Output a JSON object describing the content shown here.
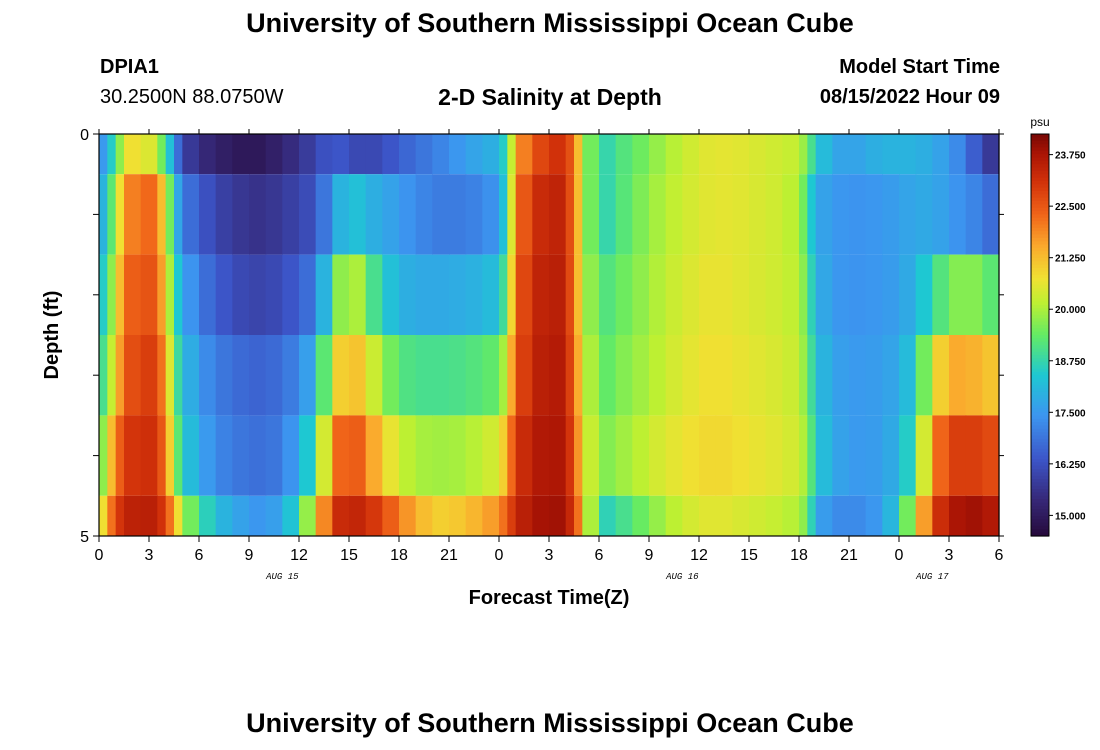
{
  "header": {
    "title": "University of Southern Mississippi Ocean Cube",
    "station": "DPIA1",
    "coords": "30.2500N  88.0750W",
    "subtitle": "2-D Salinity at Depth",
    "model_start_label": "Model Start Time",
    "model_start_value": "08/15/2022 Hour 09"
  },
  "footer": {
    "title": "University of Southern Mississippi Ocean Cube"
  },
  "chart_data": {
    "type": "heatmap",
    "title": "2-D Salinity at Depth",
    "xlabel": "Forecast Time(Z)",
    "ylabel": "Depth (ft)",
    "x_ticks": [
      "0",
      "3",
      "6",
      "9",
      "12",
      "15",
      "18",
      "21",
      "0",
      "3",
      "6",
      "9",
      "12",
      "15",
      "18",
      "21",
      "0",
      "3",
      "6"
    ],
    "date_labels": [
      {
        "at_index": 11,
        "text": "AUG 15"
      },
      {
        "at_index": 35,
        "text": "AUG 16"
      },
      {
        "at_index": 50,
        "text": "AUG 17"
      }
    ],
    "y_tick_labels": [
      {
        "depth": 0,
        "text": "0"
      },
      {
        "depth": 5,
        "text": "5"
      }
    ],
    "ylim": [
      0,
      5
    ],
    "xlim_hours": [
      0,
      54
    ],
    "colorbar": {
      "unit": "psu",
      "range": [
        14.5,
        24.25
      ],
      "ticks": [
        "23.750",
        "22.500",
        "21.250",
        "20.000",
        "18.750",
        "17.500",
        "16.250",
        "15.000"
      ],
      "tick_values": [
        23.75,
        22.5,
        21.25,
        20.0,
        18.75,
        17.5,
        16.25,
        15.0
      ]
    },
    "depth_layers": [
      "0.0-0.5 ft",
      "0.5-1.5 ft",
      "1.5-2.5 ft",
      "2.5-3.5 ft",
      "3.5-4.5 ft",
      "4.5-5.0 ft"
    ],
    "profiles": [
      {
        "depth": "0.0-0.5 ft",
        "hours": [
          0,
          0.5,
          1,
          1.5,
          2.5,
          3.5,
          4,
          4.5,
          5,
          6,
          7,
          8,
          9,
          10,
          11,
          12,
          13,
          14,
          15,
          16,
          17,
          18,
          19,
          20,
          21,
          22,
          23,
          24,
          24.5,
          25,
          26,
          27,
          28,
          28.5,
          29,
          30,
          31,
          32,
          33,
          34,
          35,
          36,
          37,
          38,
          39,
          40,
          41,
          42,
          42.5,
          43,
          44,
          45,
          46,
          47,
          48,
          49,
          50,
          51,
          52,
          53,
          54
        ],
        "values": [
          17.0,
          18.0,
          19.0,
          20.5,
          21.0,
          20.0,
          19.0,
          17.5,
          16.0,
          15.5,
          15.2,
          15.0,
          14.9,
          15.0,
          15.3,
          15.6,
          16.0,
          16.5,
          16.2,
          16.0,
          16.2,
          16.5,
          16.8,
          17.0,
          17.3,
          17.6,
          17.8,
          18.0,
          19.0,
          21.5,
          22.5,
          23.0,
          23.2,
          22.0,
          20.5,
          18.5,
          19.0,
          19.3,
          19.6,
          20.0,
          20.2,
          20.5,
          20.6,
          20.6,
          20.5,
          20.4,
          20.3,
          20.2,
          19.5,
          18.5,
          17.8,
          17.6,
          17.8,
          18.0,
          18.0,
          18.0,
          17.8,
          17.5,
          17.0,
          16.0,
          15.5
        ]
      },
      {
        "depth": "0.5-1.5 ft",
        "hours": [
          0,
          0.5,
          1,
          1.5,
          2.5,
          3.5,
          4,
          4.5,
          5,
          6,
          7,
          8,
          9,
          10,
          11,
          12,
          13,
          14,
          15,
          16,
          17,
          18,
          19,
          20,
          21,
          22,
          23,
          24,
          24.5,
          25,
          26,
          27,
          28,
          28.5,
          29,
          30,
          31,
          32,
          33,
          34,
          35,
          36,
          37,
          38,
          39,
          40,
          41,
          42,
          42.5,
          43,
          44,
          45,
          46,
          47,
          48,
          49,
          50,
          51,
          52,
          53,
          54
        ],
        "values": [
          17.5,
          18.5,
          20.0,
          21.5,
          22.5,
          22.0,
          20.5,
          18.5,
          17.0,
          16.5,
          16.0,
          15.8,
          15.6,
          15.6,
          15.8,
          16.0,
          16.3,
          17.5,
          18.5,
          18.0,
          17.8,
          17.5,
          17.3,
          17.0,
          17.0,
          17.0,
          17.2,
          17.5,
          19.0,
          22.0,
          23.0,
          23.5,
          23.3,
          22.0,
          20.5,
          18.5,
          19.0,
          19.4,
          19.8,
          20.1,
          20.3,
          20.5,
          20.6,
          20.6,
          20.5,
          20.4,
          20.3,
          20.0,
          19.0,
          17.8,
          17.5,
          17.4,
          17.4,
          17.5,
          17.6,
          17.8,
          17.8,
          17.5,
          17.3,
          17.0,
          16.5
        ]
      },
      {
        "depth": "1.5-2.5 ft",
        "hours": [
          0,
          0.5,
          1,
          1.5,
          2.5,
          3.5,
          4,
          4.5,
          5,
          6,
          7,
          8,
          9,
          10,
          11,
          12,
          13,
          14,
          15,
          16,
          17,
          18,
          19,
          20,
          21,
          22,
          23,
          24,
          24.5,
          25,
          26,
          27,
          28,
          28.5,
          29,
          30,
          31,
          32,
          33,
          34,
          35,
          36,
          37,
          38,
          39,
          40,
          41,
          42,
          42.5,
          43,
          44,
          45,
          46,
          47,
          48,
          49,
          50,
          51,
          52,
          53,
          54
        ],
        "values": [
          18.0,
          19.0,
          20.5,
          22.0,
          22.8,
          22.3,
          21.0,
          19.0,
          17.8,
          17.0,
          16.5,
          16.2,
          16.0,
          16.0,
          16.2,
          16.5,
          17.0,
          19.0,
          20.5,
          19.5,
          18.5,
          18.0,
          17.8,
          17.8,
          17.8,
          17.9,
          18.0,
          18.3,
          19.5,
          22.3,
          23.2,
          23.6,
          23.4,
          22.0,
          20.5,
          19.0,
          19.3,
          19.6,
          19.9,
          20.2,
          20.4,
          20.6,
          20.7,
          20.6,
          20.5,
          20.4,
          20.3,
          20.1,
          19.3,
          18.0,
          17.5,
          17.4,
          17.4,
          17.5,
          17.6,
          18.0,
          18.8,
          19.5,
          19.8,
          19.5,
          19.0
        ]
      },
      {
        "depth": "2.5-3.5 ft",
        "hours": [
          0,
          0.5,
          1,
          1.5,
          2.5,
          3.5,
          4,
          4.5,
          5,
          6,
          7,
          8,
          9,
          10,
          11,
          12,
          13,
          14,
          15,
          16,
          17,
          18,
          19,
          20,
          21,
          22,
          23,
          24,
          24.5,
          25,
          26,
          27,
          28,
          28.5,
          29,
          30,
          31,
          32,
          33,
          34,
          35,
          36,
          37,
          38,
          39,
          40,
          41,
          42,
          42.5,
          43,
          44,
          45,
          46,
          47,
          48,
          49,
          50,
          51,
          52,
          53,
          54
        ],
        "values": [
          18.5,
          19.5,
          21.0,
          22.3,
          23.0,
          22.8,
          21.5,
          19.5,
          18.2,
          17.5,
          17.0,
          16.8,
          16.6,
          16.6,
          16.8,
          17.2,
          18.0,
          20.5,
          21.5,
          20.8,
          19.8,
          19.2,
          19.0,
          19.0,
          19.0,
          19.1,
          19.2,
          19.4,
          20.5,
          22.5,
          23.3,
          23.7,
          23.5,
          22.2,
          20.8,
          19.2,
          19.5,
          19.8,
          20.0,
          20.3,
          20.5,
          20.7,
          20.8,
          20.7,
          20.6,
          20.5,
          20.4,
          20.2,
          19.5,
          18.3,
          17.7,
          17.5,
          17.5,
          17.6,
          17.8,
          18.5,
          20.5,
          21.5,
          21.5,
          21.3,
          21.0
        ]
      },
      {
        "depth": "3.5-4.5 ft",
        "hours": [
          0,
          0.5,
          1,
          1.5,
          2.5,
          3.5,
          4,
          4.5,
          5,
          6,
          7,
          8,
          9,
          10,
          11,
          12,
          13,
          14,
          15,
          16,
          17,
          18,
          19,
          20,
          21,
          22,
          23,
          24,
          24.5,
          25,
          26,
          27,
          28,
          28.5,
          29,
          30,
          31,
          32,
          33,
          34,
          35,
          36,
          37,
          38,
          39,
          40,
          41,
          42,
          42.5,
          43,
          44,
          45,
          46,
          47,
          48,
          49,
          50,
          51,
          52,
          53,
          54
        ],
        "values": [
          19.0,
          20.5,
          22.0,
          22.8,
          23.3,
          23.0,
          22.0,
          20.0,
          18.5,
          17.8,
          17.2,
          17.0,
          16.8,
          16.8,
          17.0,
          17.8,
          19.0,
          21.8,
          22.8,
          22.0,
          21.0,
          20.3,
          20.0,
          19.9,
          19.9,
          20.0,
          20.2,
          20.5,
          21.5,
          23.0,
          23.5,
          23.8,
          23.6,
          22.5,
          21.0,
          19.5,
          19.8,
          20.0,
          20.3,
          20.5,
          20.7,
          20.8,
          20.9,
          20.8,
          20.7,
          20.6,
          20.5,
          20.3,
          19.8,
          18.5,
          17.8,
          17.5,
          17.5,
          17.6,
          18.0,
          19.0,
          21.8,
          22.8,
          23.0,
          22.8,
          22.6
        ]
      },
      {
        "depth": "4.5-5.0 ft",
        "hours": [
          0,
          0.5,
          1,
          1.5,
          2.5,
          3.5,
          4,
          4.5,
          5,
          6,
          7,
          8,
          9,
          10,
          11,
          12,
          13,
          14,
          15,
          16,
          17,
          18,
          19,
          20,
          21,
          22,
          23,
          24,
          24.5,
          25,
          26,
          27,
          28,
          28.5,
          29,
          30,
          31,
          32,
          33,
          34,
          35,
          36,
          37,
          38,
          39,
          40,
          41,
          42,
          42.5,
          43,
          44,
          45,
          46,
          47,
          48,
          49,
          50,
          51,
          52,
          53,
          54
        ],
        "values": [
          20.0,
          21.5,
          22.8,
          23.3,
          23.6,
          23.4,
          22.8,
          21.5,
          20.0,
          19.0,
          18.2,
          17.8,
          17.5,
          17.4,
          17.8,
          18.8,
          20.8,
          23.0,
          23.5,
          23.2,
          22.8,
          22.0,
          21.5,
          21.0,
          21.0,
          21.2,
          21.5,
          21.8,
          22.5,
          23.3,
          23.7,
          23.9,
          23.8,
          22.8,
          21.5,
          18.5,
          18.8,
          19.2,
          19.6,
          20.0,
          20.3,
          20.5,
          20.6,
          20.5,
          20.4,
          20.3,
          20.2,
          20.0,
          19.5,
          17.8,
          17.3,
          17.2,
          17.3,
          17.6,
          18.5,
          20.5,
          22.8,
          23.6,
          23.9,
          23.8,
          23.5
        ]
      }
    ]
  }
}
